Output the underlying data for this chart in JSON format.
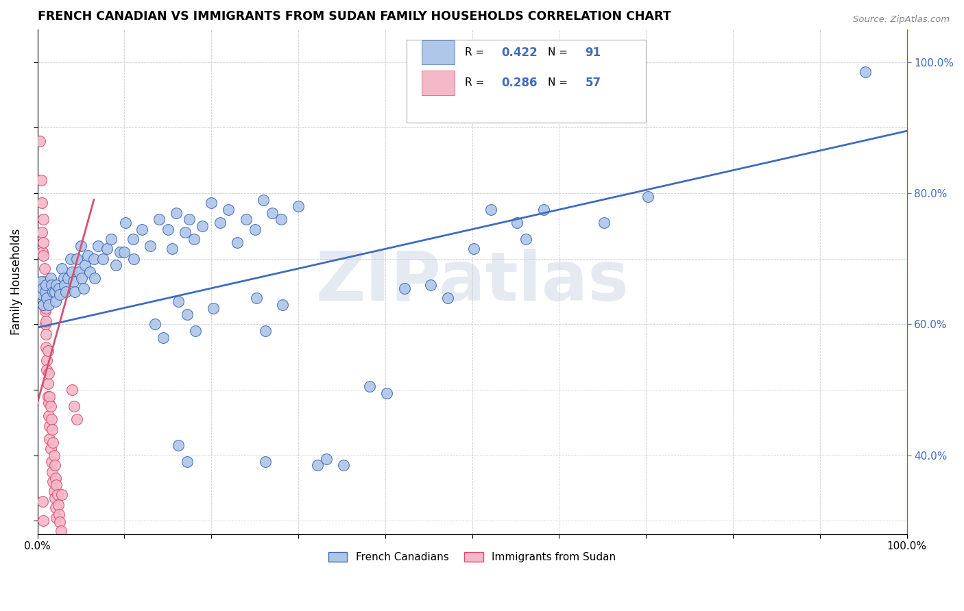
{
  "title": "FRENCH CANADIAN VS IMMIGRANTS FROM SUDAN FAMILY HOUSEHOLDS CORRELATION CHART",
  "source": "Source: ZipAtlas.com",
  "ylabel": "Family Households",
  "x_min": 0.0,
  "x_max": 1.0,
  "y_min": 0.28,
  "y_max": 1.05,
  "legend_blue_label": "French Canadians",
  "legend_pink_label": "Immigrants from Sudan",
  "R_blue_val": "0.422",
  "N_blue_val": "91",
  "R_pink_val": "0.286",
  "N_pink_val": "57",
  "blue_color": "#aec6e8",
  "pink_color": "#f4b8c8",
  "blue_line_color": "#3f6bbf",
  "pink_line_color": "#d94f6e",
  "watermark": "ZIPatlas",
  "blue_line_x0": 0.0,
  "blue_line_x1": 1.0,
  "blue_line_y0": 0.595,
  "blue_line_y1": 0.895,
  "pink_line_x0": 0.0,
  "pink_line_x1": 0.065,
  "pink_line_y0": 0.48,
  "pink_line_y1": 0.79,
  "blue_scatter": [
    [
      0.004,
      0.665
    ],
    [
      0.005,
      0.645
    ],
    [
      0.006,
      0.655
    ],
    [
      0.007,
      0.63
    ],
    [
      0.009,
      0.65
    ],
    [
      0.01,
      0.66
    ],
    [
      0.011,
      0.64
    ],
    [
      0.013,
      0.63
    ],
    [
      0.015,
      0.67
    ],
    [
      0.016,
      0.66
    ],
    [
      0.018,
      0.65
    ],
    [
      0.02,
      0.65
    ],
    [
      0.021,
      0.635
    ],
    [
      0.022,
      0.66
    ],
    [
      0.025,
      0.655
    ],
    [
      0.026,
      0.645
    ],
    [
      0.028,
      0.685
    ],
    [
      0.03,
      0.67
    ],
    [
      0.031,
      0.66
    ],
    [
      0.033,
      0.65
    ],
    [
      0.035,
      0.67
    ],
    [
      0.038,
      0.7
    ],
    [
      0.04,
      0.68
    ],
    [
      0.041,
      0.665
    ],
    [
      0.043,
      0.65
    ],
    [
      0.045,
      0.7
    ],
    [
      0.048,
      0.68
    ],
    [
      0.05,
      0.72
    ],
    [
      0.051,
      0.67
    ],
    [
      0.053,
      0.655
    ],
    [
      0.055,
      0.69
    ],
    [
      0.058,
      0.705
    ],
    [
      0.06,
      0.68
    ],
    [
      0.065,
      0.7
    ],
    [
      0.066,
      0.67
    ],
    [
      0.07,
      0.72
    ],
    [
      0.075,
      0.7
    ],
    [
      0.08,
      0.715
    ],
    [
      0.085,
      0.73
    ],
    [
      0.09,
      0.69
    ],
    [
      0.095,
      0.71
    ],
    [
      0.1,
      0.71
    ],
    [
      0.101,
      0.755
    ],
    [
      0.11,
      0.73
    ],
    [
      0.111,
      0.7
    ],
    [
      0.12,
      0.745
    ],
    [
      0.13,
      0.72
    ],
    [
      0.14,
      0.76
    ],
    [
      0.15,
      0.745
    ],
    [
      0.155,
      0.715
    ],
    [
      0.16,
      0.77
    ],
    [
      0.17,
      0.74
    ],
    [
      0.175,
      0.76
    ],
    [
      0.18,
      0.73
    ],
    [
      0.19,
      0.75
    ],
    [
      0.2,
      0.785
    ],
    [
      0.21,
      0.755
    ],
    [
      0.22,
      0.775
    ],
    [
      0.23,
      0.725
    ],
    [
      0.24,
      0.76
    ],
    [
      0.25,
      0.745
    ],
    [
      0.26,
      0.79
    ],
    [
      0.27,
      0.77
    ],
    [
      0.28,
      0.76
    ],
    [
      0.3,
      0.78
    ],
    [
      0.135,
      0.6
    ],
    [
      0.145,
      0.58
    ],
    [
      0.162,
      0.635
    ],
    [
      0.172,
      0.615
    ],
    [
      0.182,
      0.59
    ],
    [
      0.202,
      0.625
    ],
    [
      0.252,
      0.64
    ],
    [
      0.262,
      0.59
    ],
    [
      0.282,
      0.63
    ],
    [
      0.162,
      0.415
    ],
    [
      0.172,
      0.39
    ],
    [
      0.322,
      0.385
    ],
    [
      0.352,
      0.385
    ],
    [
      0.382,
      0.505
    ],
    [
      0.402,
      0.495
    ],
    [
      0.422,
      0.655
    ],
    [
      0.452,
      0.66
    ],
    [
      0.472,
      0.64
    ],
    [
      0.502,
      0.715
    ],
    [
      0.522,
      0.775
    ],
    [
      0.552,
      0.755
    ],
    [
      0.562,
      0.73
    ],
    [
      0.582,
      0.775
    ],
    [
      0.652,
      0.755
    ],
    [
      0.702,
      0.795
    ],
    [
      0.952,
      0.985
    ],
    [
      0.262,
      0.39
    ],
    [
      0.332,
      0.395
    ]
  ],
  "pink_scatter": [
    [
      0.003,
      0.88
    ],
    [
      0.004,
      0.82
    ],
    [
      0.005,
      0.785
    ],
    [
      0.005,
      0.74
    ],
    [
      0.006,
      0.71
    ],
    [
      0.007,
      0.76
    ],
    [
      0.007,
      0.725
    ],
    [
      0.007,
      0.705
    ],
    [
      0.008,
      0.685
    ],
    [
      0.008,
      0.665
    ],
    [
      0.008,
      0.64
    ],
    [
      0.009,
      0.655
    ],
    [
      0.009,
      0.62
    ],
    [
      0.009,
      0.6
    ],
    [
      0.01,
      0.645
    ],
    [
      0.01,
      0.625
    ],
    [
      0.01,
      0.605
    ],
    [
      0.01,
      0.585
    ],
    [
      0.01,
      0.565
    ],
    [
      0.011,
      0.545
    ],
    [
      0.011,
      0.53
    ],
    [
      0.012,
      0.56
    ],
    [
      0.012,
      0.51
    ],
    [
      0.012,
      0.49
    ],
    [
      0.013,
      0.525
    ],
    [
      0.013,
      0.48
    ],
    [
      0.013,
      0.46
    ],
    [
      0.014,
      0.49
    ],
    [
      0.014,
      0.445
    ],
    [
      0.014,
      0.425
    ],
    [
      0.015,
      0.475
    ],
    [
      0.015,
      0.41
    ],
    [
      0.016,
      0.455
    ],
    [
      0.016,
      0.39
    ],
    [
      0.017,
      0.44
    ],
    [
      0.017,
      0.375
    ],
    [
      0.018,
      0.42
    ],
    [
      0.018,
      0.36
    ],
    [
      0.019,
      0.4
    ],
    [
      0.019,
      0.345
    ],
    [
      0.02,
      0.385
    ],
    [
      0.02,
      0.335
    ],
    [
      0.021,
      0.365
    ],
    [
      0.021,
      0.32
    ],
    [
      0.022,
      0.355
    ],
    [
      0.022,
      0.305
    ],
    [
      0.023,
      0.34
    ],
    [
      0.024,
      0.325
    ],
    [
      0.025,
      0.31
    ],
    [
      0.026,
      0.298
    ],
    [
      0.027,
      0.285
    ],
    [
      0.028,
      0.34
    ],
    [
      0.006,
      0.33
    ],
    [
      0.04,
      0.5
    ],
    [
      0.042,
      0.475
    ],
    [
      0.045,
      0.455
    ],
    [
      0.007,
      0.3
    ]
  ]
}
